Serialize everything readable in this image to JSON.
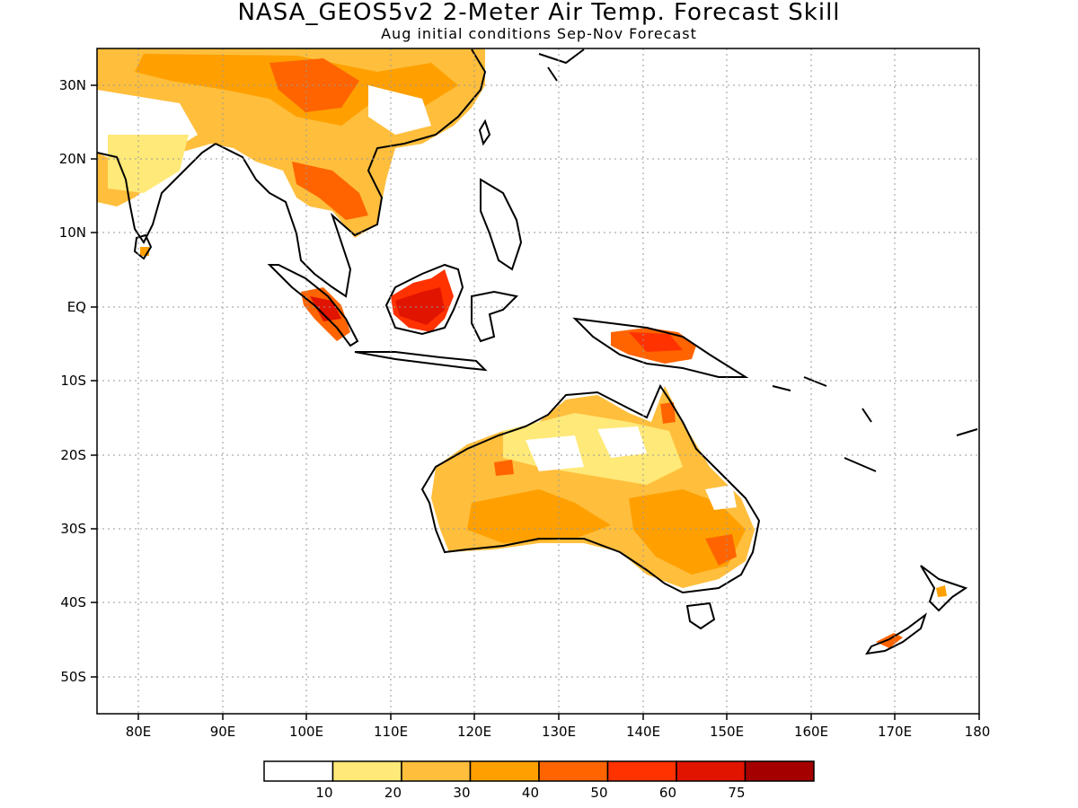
{
  "title": "NASA_GEOS5v2 2-Meter Air Temp. Forecast Skill",
  "subtitle": "Aug initial conditions  Sep-Nov Forecast",
  "map": {
    "lon_range": [
      75,
      180
    ],
    "lat_range": [
      -55,
      35
    ],
    "grid": true,
    "lon_ticks": [
      "80E",
      "90E",
      "100E",
      "110E",
      "120E",
      "130E",
      "140E",
      "150E",
      "160E",
      "170E",
      "180"
    ],
    "lat_ticks": [
      "30N",
      "20N",
      "10N",
      "EQ",
      "10S",
      "20S",
      "30S",
      "40S",
      "50S"
    ]
  },
  "colorbar": {
    "colors": [
      "#ffffff",
      "#ffe978",
      "#ffbe3c",
      "#ffa000",
      "#ff6400",
      "#ff3200",
      "#e11400",
      "#a50000"
    ],
    "labels": [
      "10",
      "20",
      "30",
      "40",
      "50",
      "60",
      "75"
    ]
  }
}
